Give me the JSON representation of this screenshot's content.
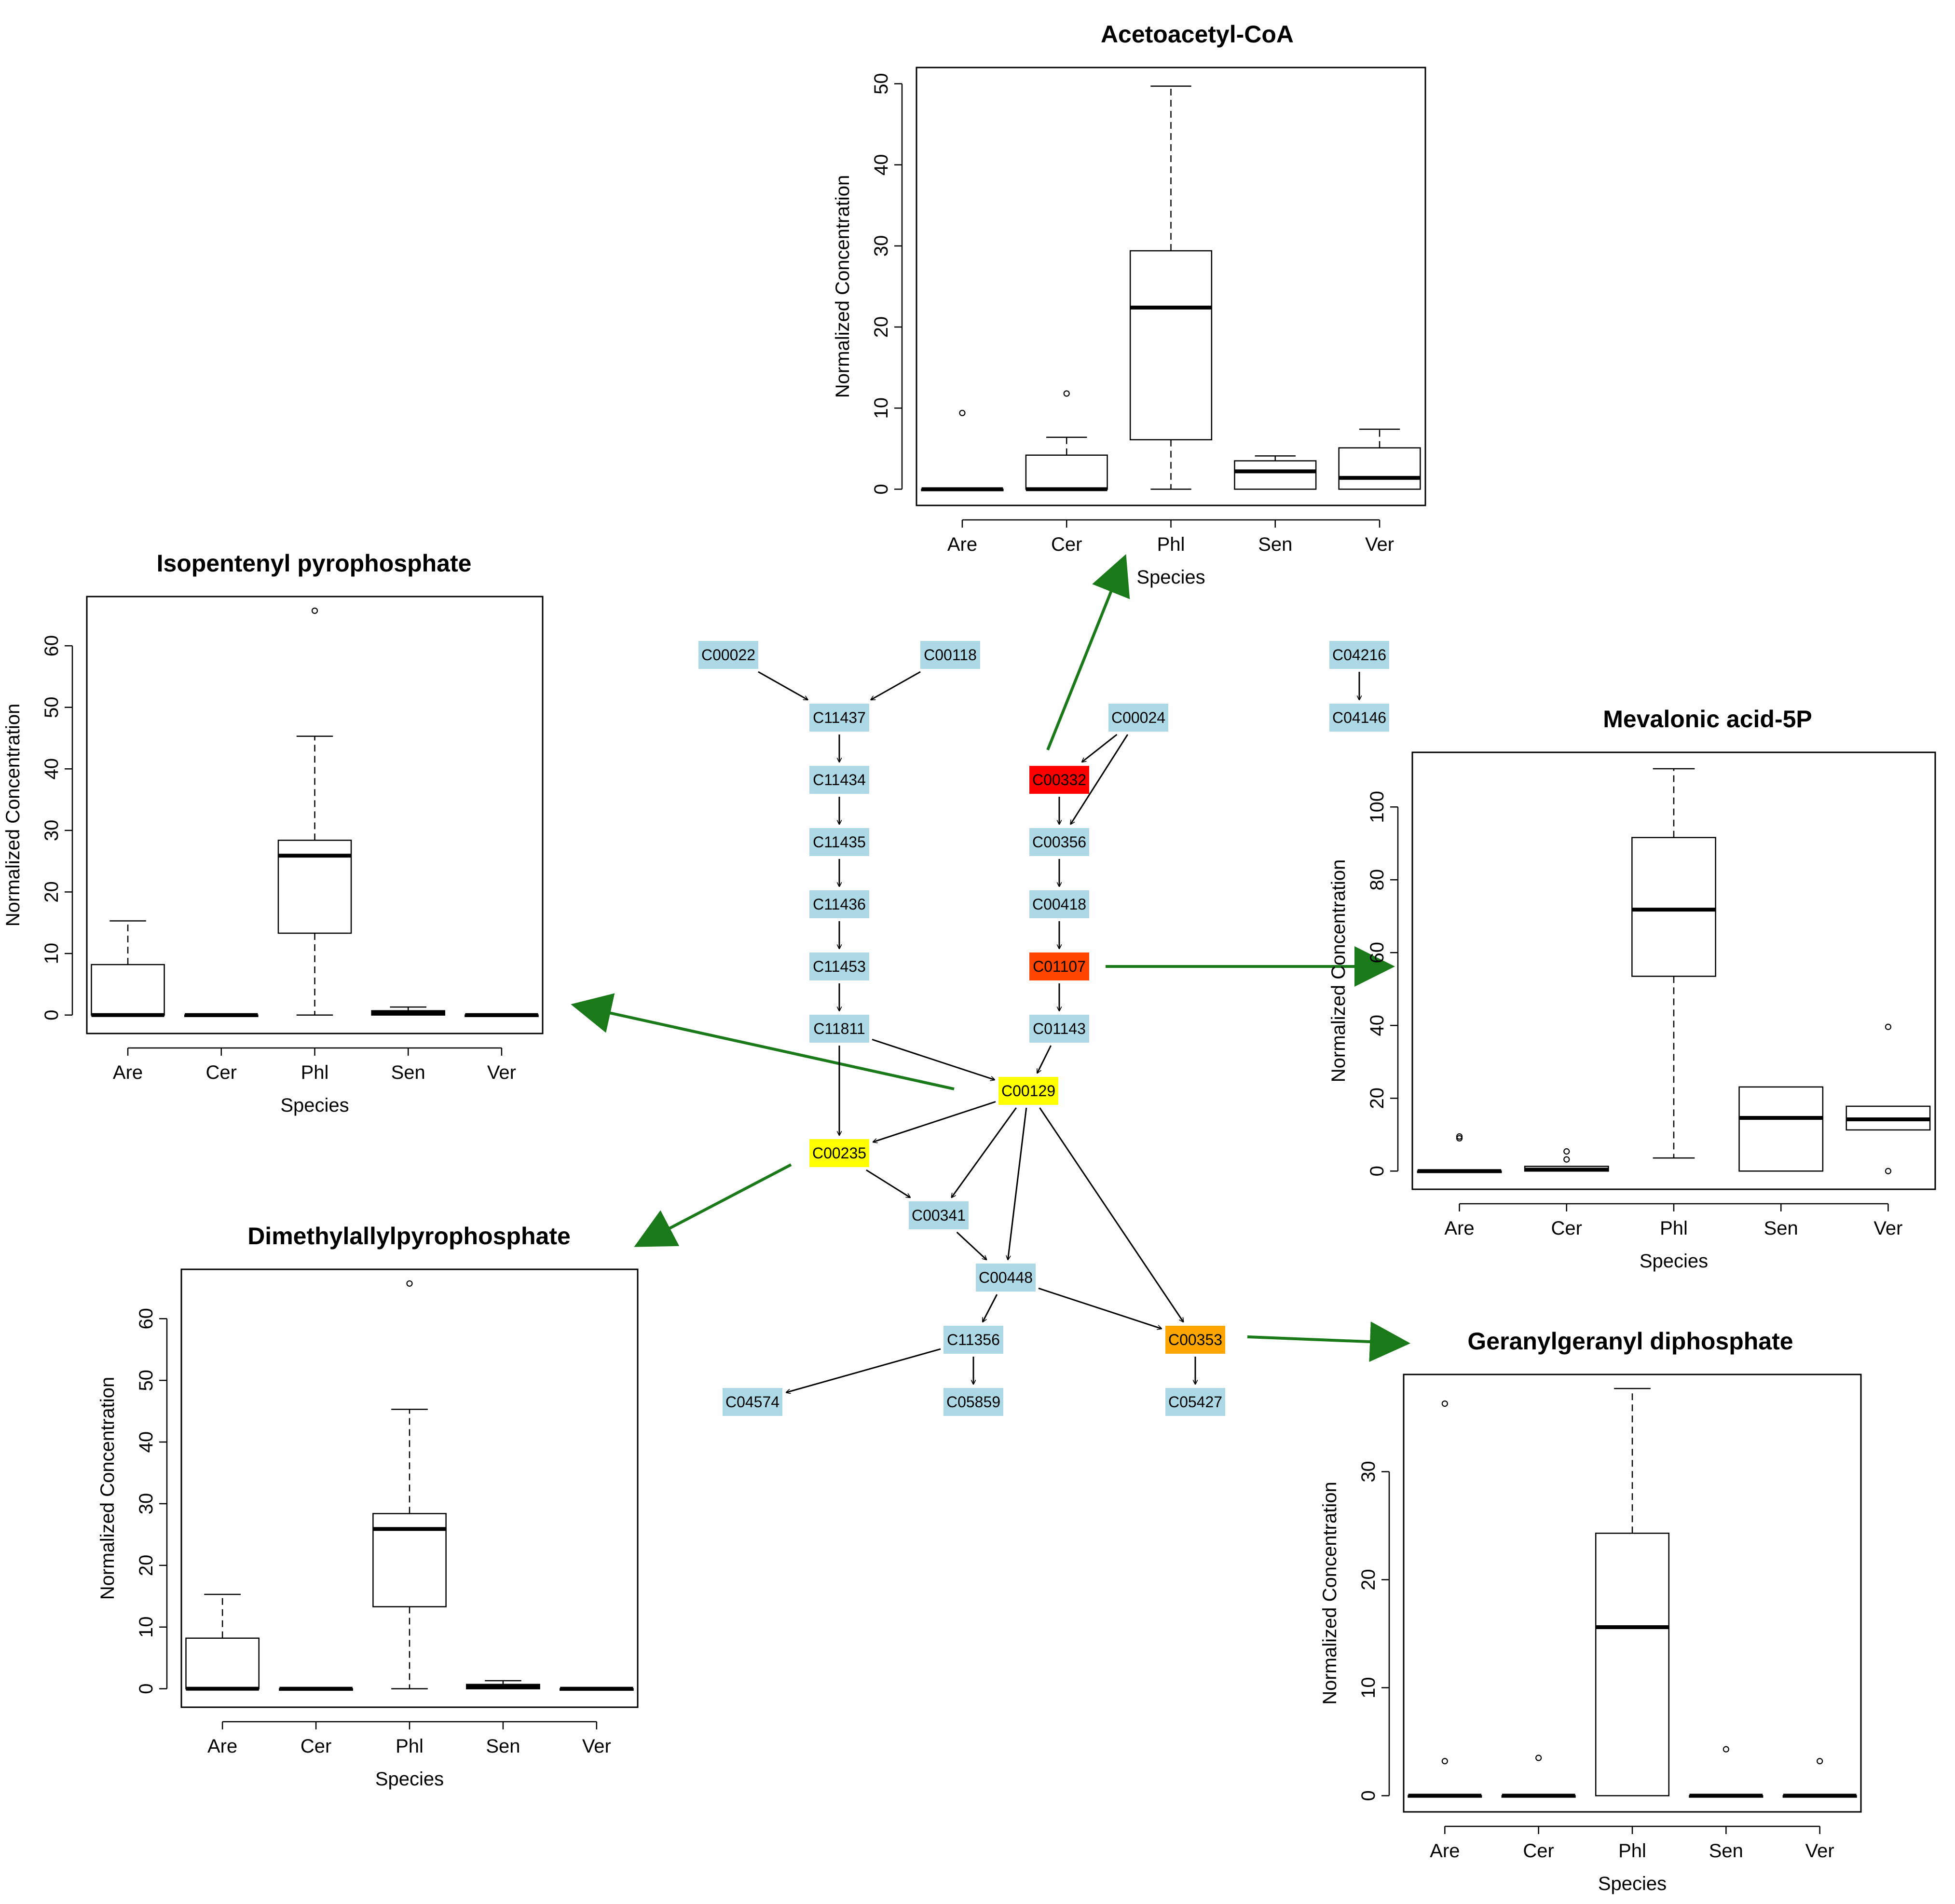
{
  "colors": {
    "node_default": "#add8e6",
    "node_yellow": "#ffff00",
    "node_red": "#ff0000",
    "node_orangered": "#ff4500",
    "node_orange": "#ffa500",
    "edge": "#000000",
    "link": "#1a7a1a"
  },
  "network": {
    "nodes": [
      {
        "id": "C00022",
        "color": "node_default"
      },
      {
        "id": "C00118",
        "color": "node_default"
      },
      {
        "id": "C04216",
        "color": "node_default"
      },
      {
        "id": "C11437",
        "color": "node_default"
      },
      {
        "id": "C00024",
        "color": "node_default"
      },
      {
        "id": "C04146",
        "color": "node_default"
      },
      {
        "id": "C11434",
        "color": "node_default"
      },
      {
        "id": "C00332",
        "color": "node_red"
      },
      {
        "id": "C11435",
        "color": "node_default"
      },
      {
        "id": "C00356",
        "color": "node_default"
      },
      {
        "id": "C11436",
        "color": "node_default"
      },
      {
        "id": "C00418",
        "color": "node_default"
      },
      {
        "id": "C11453",
        "color": "node_default"
      },
      {
        "id": "C01107",
        "color": "node_orangered"
      },
      {
        "id": "C11811",
        "color": "node_default"
      },
      {
        "id": "C01143",
        "color": "node_default"
      },
      {
        "id": "C00129",
        "color": "node_yellow"
      },
      {
        "id": "C00235",
        "color": "node_yellow"
      },
      {
        "id": "C00341",
        "color": "node_default"
      },
      {
        "id": "C00448",
        "color": "node_default"
      },
      {
        "id": "C11356",
        "color": "node_default"
      },
      {
        "id": "C00353",
        "color": "node_orange"
      },
      {
        "id": "C04574",
        "color": "node_default"
      },
      {
        "id": "C05859",
        "color": "node_default"
      },
      {
        "id": "C05427",
        "color": "node_default"
      }
    ],
    "edges": [
      [
        "C00022",
        "C11437"
      ],
      [
        "C00118",
        "C11437"
      ],
      [
        "C04216",
        "C04146"
      ],
      [
        "C11437",
        "C11434"
      ],
      [
        "C11434",
        "C11435"
      ],
      [
        "C11435",
        "C11436"
      ],
      [
        "C11436",
        "C11453"
      ],
      [
        "C11453",
        "C11811"
      ],
      [
        "C11811",
        "C00235"
      ],
      [
        "C11811",
        "C00129"
      ],
      [
        "C00024",
        "C00332"
      ],
      [
        "C00024",
        "C00356"
      ],
      [
        "C00332",
        "C00356"
      ],
      [
        "C00356",
        "C00418"
      ],
      [
        "C00418",
        "C01107"
      ],
      [
        "C01107",
        "C01143"
      ],
      [
        "C01143",
        "C00129"
      ],
      [
        "C00129",
        "C00235"
      ],
      [
        "C00129",
        "C00341"
      ],
      [
        "C00129",
        "C00448"
      ],
      [
        "C00129",
        "C00353"
      ],
      [
        "C00235",
        "C00341"
      ],
      [
        "C00341",
        "C00448"
      ],
      [
        "C00448",
        "C11356"
      ],
      [
        "C00448",
        "C00353"
      ],
      [
        "C11356",
        "C04574"
      ],
      [
        "C11356",
        "C05859"
      ],
      [
        "C00353",
        "C05427"
      ]
    ],
    "links": [
      {
        "from": "C00332",
        "to": "Acetoacetyl-CoA"
      },
      {
        "from": "C00129",
        "to": "Isopentenyl pyrophosphate"
      },
      {
        "from": "C01107",
        "to": "Mevalonic acid-5P"
      },
      {
        "from": "C00235",
        "to": "Dimethylallylpyrophosphate"
      },
      {
        "from": "C00353",
        "to": "Geranylgeranyl diphosphate"
      }
    ]
  },
  "chart_data": [
    {
      "type": "boxplot",
      "title": "Acetoacetyl-CoA",
      "xlabel": "Species",
      "ylabel": "Normalized Concentration",
      "categories": [
        "Are",
        "Cer",
        "Phl",
        "Sen",
        "Ver"
      ],
      "yticks": [
        0,
        10,
        20,
        30,
        40,
        50
      ],
      "ylim": [
        -2,
        52
      ],
      "boxes": [
        {
          "min": 0,
          "q1": 0,
          "median": 0,
          "q3": 0,
          "max": 0,
          "outliers": [
            9.4
          ]
        },
        {
          "min": 0,
          "q1": 0,
          "median": 0,
          "q3": 4.2,
          "max": 6.4,
          "outliers": [
            11.8
          ]
        },
        {
          "min": 0,
          "q1": 6.1,
          "median": 22.4,
          "q3": 29.4,
          "max": 49.7,
          "outliers": []
        },
        {
          "min": 0,
          "q1": 0,
          "median": 2.2,
          "q3": 3.5,
          "max": 4.1,
          "outliers": []
        },
        {
          "min": 0,
          "q1": 0,
          "median": 1.4,
          "q3": 5.1,
          "max": 7.4,
          "outliers": []
        }
      ]
    },
    {
      "type": "boxplot",
      "title": "Isopentenyl pyrophosphate",
      "xlabel": "Species",
      "ylabel": "Normalized Concentration",
      "categories": [
        "Are",
        "Cer",
        "Phl",
        "Sen",
        "Ver"
      ],
      "yticks": [
        0,
        10,
        20,
        30,
        40,
        50,
        60
      ],
      "ylim": [
        -3,
        68
      ],
      "boxes": [
        {
          "min": 0,
          "q1": 0,
          "median": 0,
          "q3": 8.2,
          "max": 15.3,
          "outliers": []
        },
        {
          "min": 0,
          "q1": 0,
          "median": 0,
          "q3": 0,
          "max": 0,
          "outliers": []
        },
        {
          "min": 0,
          "q1": 13.3,
          "median": 25.9,
          "q3": 28.4,
          "max": 45.3,
          "outliers": [
            65.7
          ]
        },
        {
          "min": 0,
          "q1": 0,
          "median": 0.3,
          "q3": 0.7,
          "max": 1.3,
          "outliers": []
        },
        {
          "min": 0,
          "q1": 0,
          "median": 0,
          "q3": 0,
          "max": 0,
          "outliers": []
        }
      ]
    },
    {
      "type": "boxplot",
      "title": "Mevalonic acid-5P",
      "xlabel": "Species",
      "ylabel": "Normalized Concentration",
      "categories": [
        "Are",
        "Cer",
        "Phl",
        "Sen",
        "Ver"
      ],
      "yticks": [
        0,
        20,
        40,
        60,
        80,
        100
      ],
      "ylim": [
        -5,
        115
      ],
      "boxes": [
        {
          "min": 0,
          "q1": 0,
          "median": 0,
          "q3": 0,
          "max": 0,
          "outliers": [
            9,
            9.5
          ]
        },
        {
          "min": 0,
          "q1": 0,
          "median": 0.4,
          "q3": 1.3,
          "max": 1.3,
          "outliers": [
            3.2,
            5.4
          ]
        },
        {
          "min": 3.6,
          "q1": 53.5,
          "median": 71.8,
          "q3": 91.6,
          "max": 110.5,
          "outliers": []
        },
        {
          "min": 0,
          "q1": 0,
          "median": 14.6,
          "q3": 23.1,
          "max": 23.1,
          "outliers": []
        },
        {
          "min": 11.3,
          "q1": 11.3,
          "median": 14.2,
          "q3": 17.8,
          "max": 17.8,
          "outliers": [
            39.6,
            0
          ]
        }
      ]
    },
    {
      "type": "boxplot",
      "title": "Dimethylallylpyrophosphate",
      "xlabel": "Species",
      "ylabel": "Normalized Concentration",
      "categories": [
        "Are",
        "Cer",
        "Phl",
        "Sen",
        "Ver"
      ],
      "yticks": [
        0,
        10,
        20,
        30,
        40,
        50,
        60
      ],
      "ylim": [
        -3,
        68
      ],
      "boxes": [
        {
          "min": 0,
          "q1": 0,
          "median": 0,
          "q3": 8.2,
          "max": 15.3,
          "outliers": []
        },
        {
          "min": 0,
          "q1": 0,
          "median": 0,
          "q3": 0,
          "max": 0,
          "outliers": []
        },
        {
          "min": 0,
          "q1": 13.3,
          "median": 25.9,
          "q3": 28.4,
          "max": 45.3,
          "outliers": [
            65.7
          ]
        },
        {
          "min": 0,
          "q1": 0,
          "median": 0.3,
          "q3": 0.7,
          "max": 1.3,
          "outliers": []
        },
        {
          "min": 0,
          "q1": 0,
          "median": 0,
          "q3": 0,
          "max": 0,
          "outliers": []
        }
      ]
    },
    {
      "type": "boxplot",
      "title": "Geranylgeranyl diphosphate",
      "xlabel": "Species",
      "ylabel": "Normalized Concentration",
      "categories": [
        "Are",
        "Cer",
        "Phl",
        "Sen",
        "Ver"
      ],
      "yticks": [
        0,
        10,
        20,
        30
      ],
      "ylim": [
        -1.5,
        39
      ],
      "boxes": [
        {
          "min": 0,
          "q1": 0,
          "median": 0,
          "q3": 0,
          "max": 0,
          "outliers": [
            36.3,
            3.2
          ]
        },
        {
          "min": 0,
          "q1": 0,
          "median": 0,
          "q3": 0,
          "max": 0,
          "outliers": [
            3.5
          ]
        },
        {
          "min": 0,
          "q1": 0,
          "median": 15.6,
          "q3": 24.3,
          "max": 37.7,
          "outliers": []
        },
        {
          "min": 0,
          "q1": 0,
          "median": 0,
          "q3": 0,
          "max": 0,
          "outliers": [
            4.3
          ]
        },
        {
          "min": 0,
          "q1": 0,
          "median": 0,
          "q3": 0,
          "max": 0,
          "outliers": [
            3.2
          ]
        }
      ]
    }
  ]
}
